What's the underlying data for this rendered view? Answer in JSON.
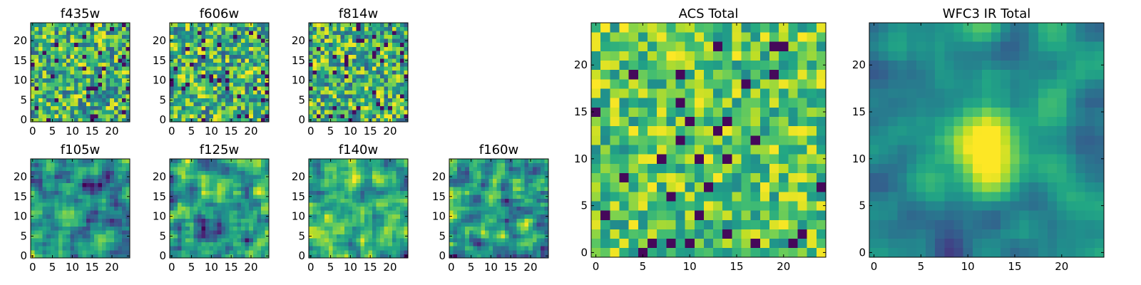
{
  "chart_data": [
    {
      "type": "heatmap",
      "title": "f435w",
      "xlim": [
        -0.5,
        24.5
      ],
      "ylim": [
        -0.5,
        24.5
      ],
      "xticks": [
        "0",
        "5",
        "10",
        "15",
        "20"
      ],
      "yticks": [
        "0",
        "5",
        "10",
        "15",
        "20"
      ],
      "colormap": "viridis",
      "texture": "noise",
      "grid_size": 25
    },
    {
      "type": "heatmap",
      "title": "f606w",
      "xlim": [
        -0.5,
        24.5
      ],
      "ylim": [
        -0.5,
        24.5
      ],
      "xticks": [
        "0",
        "5",
        "10",
        "15",
        "20"
      ],
      "yticks": [
        "0",
        "5",
        "10",
        "15",
        "20"
      ],
      "colormap": "viridis",
      "texture": "noise",
      "grid_size": 25
    },
    {
      "type": "heatmap",
      "title": "f814w",
      "xlim": [
        -0.5,
        24.5
      ],
      "ylim": [
        -0.5,
        24.5
      ],
      "xticks": [
        "0",
        "5",
        "10",
        "15",
        "20"
      ],
      "yticks": [
        "0",
        "5",
        "10",
        "15",
        "20"
      ],
      "colormap": "viridis",
      "texture": "noise",
      "grid_size": 25
    },
    {
      "type": "heatmap",
      "title": "f105w",
      "xlim": [
        -0.5,
        24.5
      ],
      "ylim": [
        -0.5,
        24.5
      ],
      "xticks": [
        "0",
        "5",
        "10",
        "15",
        "20"
      ],
      "yticks": [
        "0",
        "5",
        "10",
        "15",
        "20"
      ],
      "colormap": "viridis",
      "texture": "smooth",
      "grid_size": 25
    },
    {
      "type": "heatmap",
      "title": "f125w",
      "xlim": [
        -0.5,
        24.5
      ],
      "ylim": [
        -0.5,
        24.5
      ],
      "xticks": [
        "0",
        "5",
        "10",
        "15",
        "20"
      ],
      "yticks": [
        "0",
        "5",
        "10",
        "15",
        "20"
      ],
      "colormap": "viridis",
      "texture": "smooth",
      "grid_size": 25
    },
    {
      "type": "heatmap",
      "title": "f140w",
      "xlim": [
        -0.5,
        24.5
      ],
      "ylim": [
        -0.5,
        24.5
      ],
      "xticks": [
        "0",
        "5",
        "10",
        "15",
        "20"
      ],
      "yticks": [
        "0",
        "5",
        "10",
        "15",
        "20"
      ],
      "colormap": "viridis",
      "texture": "smooth",
      "grid_size": 25
    },
    {
      "type": "heatmap",
      "title": "f160w",
      "xlim": [
        -0.5,
        24.5
      ],
      "ylim": [
        -0.5,
        24.5
      ],
      "xticks": [
        "0",
        "5",
        "10",
        "15",
        "20"
      ],
      "yticks": [
        "0",
        "5",
        "10",
        "15",
        "20"
      ],
      "colormap": "viridis",
      "texture": "smooth",
      "grid_size": 25
    },
    {
      "type": "heatmap",
      "title": "ACS Total",
      "xlim": [
        -0.5,
        24.5
      ],
      "ylim": [
        -0.5,
        24.5
      ],
      "xticks": [
        "0",
        "5",
        "10",
        "15",
        "20"
      ],
      "yticks": [
        "0",
        "5",
        "10",
        "15",
        "20"
      ],
      "colormap": "viridis",
      "texture": "noise-bright",
      "grid_size": 25
    },
    {
      "type": "heatmap",
      "title": "WFC3 IR Total",
      "xlim": [
        -0.5,
        24.5
      ],
      "ylim": [
        -0.5,
        24.5
      ],
      "xticks": [
        "0",
        "5",
        "10",
        "15",
        "20"
      ],
      "yticks": [
        "0",
        "5",
        "10",
        "15",
        "20"
      ],
      "colormap": "viridis",
      "texture": "smooth-central-peak",
      "grid_size": 25
    }
  ]
}
